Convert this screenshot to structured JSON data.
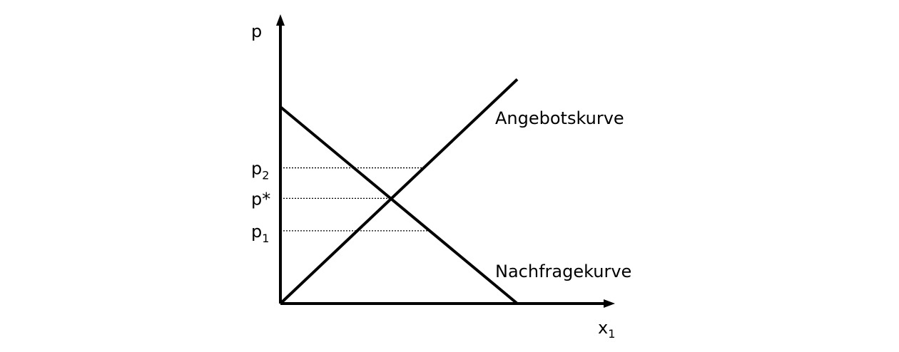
{
  "chart_data": {
    "type": "line",
    "title": "",
    "xlabel": {
      "base": "x",
      "sub": "1"
    },
    "ylabel": "p",
    "xlim": [
      0,
      10
    ],
    "ylim": [
      0,
      10
    ],
    "axis_color": "#000000",
    "series": [
      {
        "name": "Angebotskurve",
        "label": "Angebotskurve",
        "x": [
          0,
          10
        ],
        "y": [
          0,
          11.4
        ],
        "color": "#000000"
      },
      {
        "name": "Nachfragekurve",
        "label": "Nachfragekurve",
        "x": [
          0,
          10
        ],
        "y": [
          10,
          0
        ],
        "color": "#000000"
      }
    ],
    "price_levels": [
      {
        "name": "p2",
        "base": "p",
        "sub": "2",
        "y": 6.9,
        "line_x_end": 6.0
      },
      {
        "name": "p-star",
        "base": "p*",
        "sub": "",
        "y": 5.35,
        "line_x_end": 4.65
      },
      {
        "name": "p1",
        "base": "p",
        "sub": "1",
        "y": 3.7,
        "line_x_end": 6.3
      }
    ]
  }
}
